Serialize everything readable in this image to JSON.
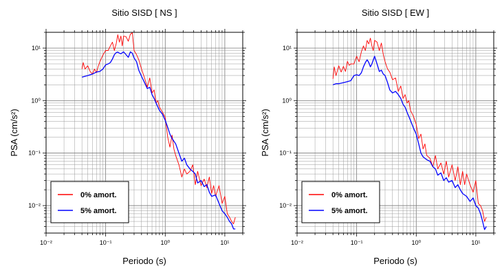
{
  "chart_data": [
    {
      "type": "line",
      "title": "Sitio SISD [ NS ]",
      "xlabel": "Periodo (s)",
      "ylabel": "PSA (cm/s²)",
      "xscale": "log",
      "yscale": "log",
      "xlim": [
        0.01,
        20
      ],
      "ylim": [
        0.003,
        20
      ],
      "grid": true,
      "legend_position": "bottom-left",
      "x_tick_labels": [
        "10⁻²",
        "10⁻¹",
        "10⁰",
        "10¹"
      ],
      "y_tick_labels": [
        "10⁻²",
        "10⁻¹",
        "10⁰",
        "10¹"
      ],
      "series": [
        {
          "name": "0% amort.",
          "color": "#ff0000",
          "x": [
            0.04,
            0.042,
            0.045,
            0.05,
            0.055,
            0.06,
            0.065,
            0.07,
            0.075,
            0.08,
            0.09,
            0.1,
            0.11,
            0.12,
            0.13,
            0.14,
            0.15,
            0.16,
            0.17,
            0.18,
            0.19,
            0.2,
            0.22,
            0.24,
            0.26,
            0.28,
            0.3,
            0.33,
            0.36,
            0.4,
            0.45,
            0.5,
            0.55,
            0.6,
            0.65,
            0.7,
            0.75,
            0.8,
            0.9,
            1.0,
            1.1,
            1.2,
            1.3,
            1.4,
            1.5,
            1.7,
            1.9,
            2.1,
            2.3,
            2.6,
            2.9,
            3.2,
            3.5,
            4.0,
            4.5,
            5.0,
            5.5,
            6.0,
            6.5,
            7.0,
            8.0,
            9.0,
            10.0,
            11.0,
            12.0,
            13.0,
            14.0,
            15.0
          ],
          "y": [
            4.0,
            5.3,
            4.0,
            4.6,
            3.6,
            3.2,
            4.0,
            3.4,
            4.5,
            5.5,
            7.4,
            9.0,
            9.0,
            11.0,
            13.0,
            9.0,
            12.0,
            18.0,
            13.0,
            17.0,
            11.0,
            17.0,
            16.5,
            13.5,
            18.5,
            19.5,
            9.0,
            7.5,
            6.0,
            4.0,
            2.7,
            1.8,
            2.7,
            1.4,
            1.6,
            0.9,
            1.0,
            0.75,
            0.6,
            0.48,
            0.2,
            0.13,
            0.22,
            0.12,
            0.09,
            0.06,
            0.035,
            0.05,
            0.04,
            0.045,
            0.06,
            0.025,
            0.045,
            0.024,
            0.032,
            0.022,
            0.035,
            0.017,
            0.024,
            0.015,
            0.024,
            0.011,
            0.015,
            0.007,
            0.006,
            0.005,
            0.0045,
            0.006
          ]
        },
        {
          "name": "5% amort.",
          "color": "#0000ff",
          "x": [
            0.04,
            0.045,
            0.05,
            0.06,
            0.07,
            0.08,
            0.09,
            0.1,
            0.11,
            0.12,
            0.13,
            0.14,
            0.15,
            0.16,
            0.17,
            0.18,
            0.2,
            0.22,
            0.24,
            0.26,
            0.28,
            0.3,
            0.33,
            0.36,
            0.4,
            0.45,
            0.5,
            0.55,
            0.6,
            0.65,
            0.7,
            0.8,
            0.9,
            1.0,
            1.1,
            1.2,
            1.3,
            1.5,
            1.7,
            1.9,
            2.1,
            2.3,
            2.6,
            2.9,
            3.2,
            3.5,
            4.0,
            4.5,
            5.0,
            5.5,
            6.0,
            7.0,
            8.0,
            9.0,
            10.0,
            11.0,
            12.0,
            13.0,
            14.0,
            15.0
          ],
          "y": [
            2.8,
            2.9,
            3.0,
            3.2,
            3.5,
            3.6,
            4.0,
            4.8,
            5.0,
            5.3,
            6.2,
            7.5,
            8.2,
            8.4,
            8.0,
            7.8,
            8.5,
            7.5,
            6.7,
            8.5,
            8.0,
            6.5,
            5.5,
            3.8,
            2.9,
            2.2,
            1.7,
            1.8,
            1.3,
            1.1,
            0.9,
            0.65,
            0.55,
            0.42,
            0.31,
            0.23,
            0.19,
            0.15,
            0.1,
            0.07,
            0.08,
            0.06,
            0.05,
            0.045,
            0.04,
            0.027,
            0.03,
            0.023,
            0.025,
            0.018,
            0.015,
            0.016,
            0.011,
            0.008,
            0.007,
            0.006,
            0.005,
            0.0045,
            0.0036,
            0.0036
          ]
        }
      ]
    },
    {
      "type": "line",
      "title": "Sitio SISD [ EW ]",
      "xlabel": "Periodo (s)",
      "ylabel": "PSA (cm/s²)",
      "xscale": "log",
      "yscale": "log",
      "xlim": [
        0.01,
        20
      ],
      "ylim": [
        0.003,
        20
      ],
      "grid": true,
      "legend_position": "bottom-left",
      "x_tick_labels": [
        "10⁻²",
        "10⁻¹",
        "10⁰",
        "10¹"
      ],
      "y_tick_labels": [
        "10⁻²",
        "10⁻¹",
        "10⁰",
        "10¹"
      ],
      "series": [
        {
          "name": "0% amort.",
          "color": "#ff0000",
          "x": [
            0.04,
            0.042,
            0.045,
            0.05,
            0.055,
            0.06,
            0.065,
            0.07,
            0.075,
            0.08,
            0.09,
            0.1,
            0.11,
            0.12,
            0.13,
            0.14,
            0.15,
            0.16,
            0.17,
            0.18,
            0.19,
            0.2,
            0.22,
            0.24,
            0.26,
            0.28,
            0.3,
            0.33,
            0.36,
            0.4,
            0.45,
            0.5,
            0.55,
            0.6,
            0.65,
            0.7,
            0.75,
            0.8,
            0.9,
            1.0,
            1.1,
            1.2,
            1.3,
            1.4,
            1.5,
            1.7,
            1.9,
            2.1,
            2.3,
            2.6,
            2.9,
            3.2,
            3.5,
            4.0,
            4.5,
            5.0,
            5.5,
            6.0,
            6.5,
            7.0,
            8.0,
            9.0,
            10.0,
            11.0,
            12.0,
            13.0,
            14.0,
            15.0
          ],
          "y": [
            2.6,
            4.4,
            3.0,
            4.6,
            3.5,
            4.5,
            3.6,
            5.6,
            4.7,
            5.0,
            5.0,
            7.0,
            5.5,
            8.5,
            11.0,
            9.0,
            14.0,
            12.0,
            15.5,
            11.0,
            9.0,
            14.0,
            13.0,
            9.0,
            12.5,
            7.5,
            5.5,
            4.0,
            3.5,
            2.5,
            2.7,
            1.5,
            1.9,
            1.1,
            1.3,
            0.9,
            1.0,
            0.65,
            0.5,
            0.35,
            0.19,
            0.23,
            0.12,
            0.15,
            0.09,
            0.08,
            0.055,
            0.09,
            0.05,
            0.065,
            0.04,
            0.07,
            0.035,
            0.06,
            0.03,
            0.055,
            0.025,
            0.045,
            0.025,
            0.04,
            0.025,
            0.018,
            0.03,
            0.011,
            0.01,
            0.008,
            0.005,
            0.006
          ]
        },
        {
          "name": "5% amort.",
          "color": "#0000ff",
          "x": [
            0.04,
            0.045,
            0.05,
            0.06,
            0.07,
            0.08,
            0.09,
            0.1,
            0.11,
            0.12,
            0.13,
            0.14,
            0.15,
            0.16,
            0.17,
            0.18,
            0.2,
            0.22,
            0.24,
            0.26,
            0.28,
            0.3,
            0.33,
            0.36,
            0.4,
            0.45,
            0.5,
            0.55,
            0.6,
            0.65,
            0.7,
            0.8,
            0.9,
            1.0,
            1.1,
            1.2,
            1.3,
            1.5,
            1.7,
            1.9,
            2.1,
            2.3,
            2.6,
            2.9,
            3.2,
            3.5,
            4.0,
            4.5,
            5.0,
            5.5,
            6.0,
            7.0,
            8.0,
            9.0,
            10.0,
            11.0,
            12.0,
            13.0,
            14.0,
            15.0
          ],
          "y": [
            2.0,
            2.1,
            2.1,
            2.2,
            2.3,
            2.4,
            3.0,
            3.1,
            3.0,
            3.4,
            4.4,
            5.3,
            6.0,
            5.3,
            4.4,
            5.0,
            7.0,
            5.0,
            3.6,
            3.8,
            3.2,
            3.0,
            2.2,
            1.6,
            1.4,
            1.5,
            1.3,
            1.1,
            0.85,
            0.75,
            0.6,
            0.42,
            0.3,
            0.23,
            0.15,
            0.1,
            0.085,
            0.075,
            0.07,
            0.055,
            0.05,
            0.038,
            0.042,
            0.03,
            0.034,
            0.028,
            0.03,
            0.022,
            0.025,
            0.02,
            0.017,
            0.015,
            0.012,
            0.014,
            0.01,
            0.009,
            0.007,
            0.005,
            0.0035,
            0.004
          ]
        }
      ]
    }
  ]
}
